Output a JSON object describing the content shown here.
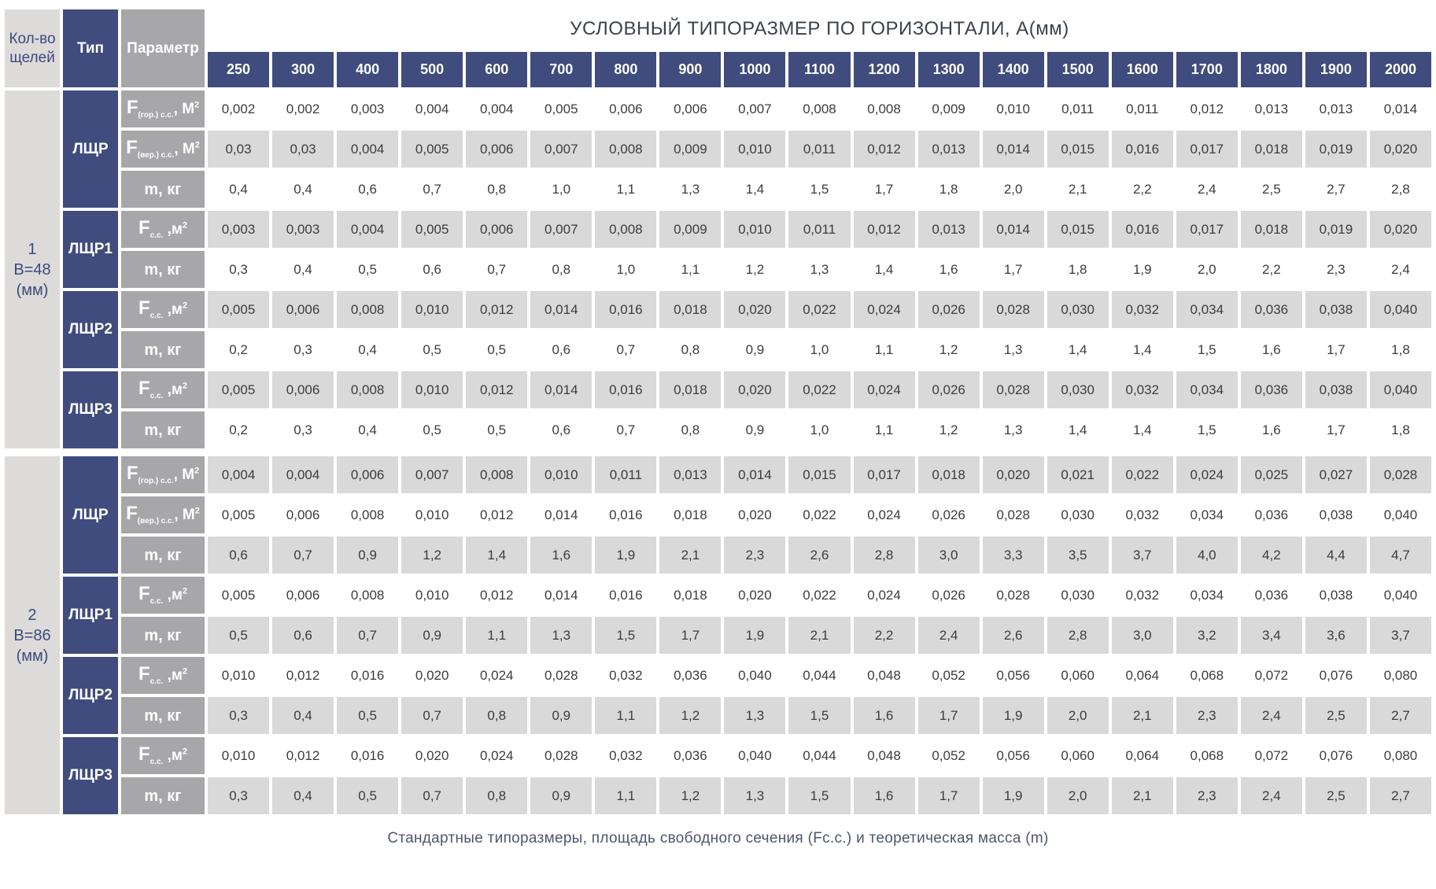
{
  "title": "УСЛОВНЫЙ ТИПОРАЗМЕР ПО ГОРИЗОНТАЛИ, А(мм)",
  "caption": "Стандартные типоразмеры, площадь свободного сечения (Fс.с.) и теоретическая масса (m)",
  "corner_headers": {
    "slots": "Кол-во щелей",
    "type": "Тип",
    "param": "Параметр"
  },
  "colors": {
    "navy": "#3F4C7D",
    "param_gray": "#A7A7A9",
    "stripe_gray": "#D9D9D9",
    "left_gray": "#DCDBD9",
    "white": "#FFFFFF"
  },
  "chart_data": {
    "type": "table",
    "columns": [
      "250",
      "300",
      "400",
      "500",
      "600",
      "700",
      "800",
      "900",
      "1000",
      "1100",
      "1200",
      "1300",
      "1400",
      "1500",
      "1600",
      "1700",
      "1800",
      "1900",
      "2000"
    ],
    "row_groups": [
      {
        "label_lines": "1\nB=48\n(мм)",
        "types": [
          {
            "name": "ЛЩР",
            "rows": [
              {
                "param": {
                  "base": "F",
                  "sub": "(гор.) с.с.",
                  "unit": ", М",
                  "sup": "2"
                },
                "values": [
                  "0,002",
                  "0,002",
                  "0,003",
                  "0,004",
                  "0,004",
                  "0,005",
                  "0,006",
                  "0,006",
                  "0,007",
                  "0,008",
                  "0,008",
                  "0,009",
                  "0,010",
                  "0,011",
                  "0,011",
                  "0,012",
                  "0,013",
                  "0,013",
                  "0,014"
                ]
              },
              {
                "param": {
                  "base": "F",
                  "sub": "(вер.) с.с.",
                  "unit": ", М",
                  "sup": "2"
                },
                "values": [
                  "0,03",
                  "0,03",
                  "0,004",
                  "0,005",
                  "0,006",
                  "0,007",
                  "0,008",
                  "0,009",
                  "0,010",
                  "0,011",
                  "0,012",
                  "0,013",
                  "0,014",
                  "0,015",
                  "0,016",
                  "0,017",
                  "0,018",
                  "0,019",
                  "0,020"
                ]
              },
              {
                "param": {
                  "text": "m, кг"
                },
                "values": [
                  "0,4",
                  "0,4",
                  "0,6",
                  "0,7",
                  "0,8",
                  "1,0",
                  "1,1",
                  "1,3",
                  "1,4",
                  "1,5",
                  "1,7",
                  "1,8",
                  "2,0",
                  "2,1",
                  "2,2",
                  "2,4",
                  "2,5",
                  "2,7",
                  "2,8"
                ]
              }
            ]
          },
          {
            "name": "ЛЩР1",
            "rows": [
              {
                "param": {
                  "base": "F",
                  "sub": "с.с.",
                  "unit": " ,м",
                  "sup": "2"
                },
                "values": [
                  "0,003",
                  "0,003",
                  "0,004",
                  "0,005",
                  "0,006",
                  "0,007",
                  "0,008",
                  "0,009",
                  "0,010",
                  "0,011",
                  "0,012",
                  "0,013",
                  "0,014",
                  "0,015",
                  "0,016",
                  "0,017",
                  "0,018",
                  "0,019",
                  "0,020"
                ]
              },
              {
                "param": {
                  "text": "m, кг"
                },
                "values": [
                  "0,3",
                  "0,4",
                  "0,5",
                  "0,6",
                  "0,7",
                  "0,8",
                  "1,0",
                  "1,1",
                  "1,2",
                  "1,3",
                  "1,4",
                  "1,6",
                  "1,7",
                  "1,8",
                  "1,9",
                  "2,0",
                  "2,2",
                  "2,3",
                  "2,4"
                ]
              }
            ]
          },
          {
            "name": "ЛЩР2",
            "rows": [
              {
                "param": {
                  "base": "F",
                  "sub": "с.с.",
                  "unit": " ,м",
                  "sup": "2"
                },
                "values": [
                  "0,005",
                  "0,006",
                  "0,008",
                  "0,010",
                  "0,012",
                  "0,014",
                  "0,016",
                  "0,018",
                  "0,020",
                  "0,022",
                  "0,024",
                  "0,026",
                  "0,028",
                  "0,030",
                  "0,032",
                  "0,034",
                  "0,036",
                  "0,038",
                  "0,040"
                ]
              },
              {
                "param": {
                  "text": "m, кг"
                },
                "values": [
                  "0,2",
                  "0,3",
                  "0,4",
                  "0,5",
                  "0,5",
                  "0,6",
                  "0,7",
                  "0,8",
                  "0,9",
                  "1,0",
                  "1,1",
                  "1,2",
                  "1,3",
                  "1,4",
                  "1,4",
                  "1,5",
                  "1,6",
                  "1,7",
                  "1,8"
                ]
              }
            ]
          },
          {
            "name": "ЛЩР3",
            "rows": [
              {
                "param": {
                  "base": "F",
                  "sub": "с.с.",
                  "unit": " ,м",
                  "sup": "2"
                },
                "values": [
                  "0,005",
                  "0,006",
                  "0,008",
                  "0,010",
                  "0,012",
                  "0,014",
                  "0,016",
                  "0,018",
                  "0,020",
                  "0,022",
                  "0,024",
                  "0,026",
                  "0,028",
                  "0,030",
                  "0,032",
                  "0,034",
                  "0,036",
                  "0,038",
                  "0,040"
                ]
              },
              {
                "param": {
                  "text": "m, кг"
                },
                "values": [
                  "0,2",
                  "0,3",
                  "0,4",
                  "0,5",
                  "0,5",
                  "0,6",
                  "0,7",
                  "0,8",
                  "0,9",
                  "1,0",
                  "1,1",
                  "1,2",
                  "1,3",
                  "1,4",
                  "1,4",
                  "1,5",
                  "1,6",
                  "1,7",
                  "1,8"
                ]
              }
            ]
          }
        ]
      },
      {
        "label_lines": "2\nB=86\n(мм)",
        "types": [
          {
            "name": "ЛЩР",
            "rows": [
              {
                "param": {
                  "base": "F",
                  "sub": "(гор.) с.с.",
                  "unit": ", М",
                  "sup": "2"
                },
                "values": [
                  "0,004",
                  "0,004",
                  "0,006",
                  "0,007",
                  "0,008",
                  "0,010",
                  "0,011",
                  "0,013",
                  "0,014",
                  "0,015",
                  "0,017",
                  "0,018",
                  "0,020",
                  "0,021",
                  "0,022",
                  "0,024",
                  "0,025",
                  "0,027",
                  "0,028"
                ]
              },
              {
                "param": {
                  "base": "F",
                  "sub": "(вер.) с.с.",
                  "unit": ", М",
                  "sup": "2"
                },
                "values": [
                  "0,005",
                  "0,006",
                  "0,008",
                  "0,010",
                  "0,012",
                  "0,014",
                  "0,016",
                  "0,018",
                  "0,020",
                  "0,022",
                  "0,024",
                  "0,026",
                  "0,028",
                  "0,030",
                  "0,032",
                  "0,034",
                  "0,036",
                  "0,038",
                  "0,040"
                ]
              },
              {
                "param": {
                  "text": "m, кг"
                },
                "values": [
                  "0,6",
                  "0,7",
                  "0,9",
                  "1,2",
                  "1,4",
                  "1,6",
                  "1,9",
                  "2,1",
                  "2,3",
                  "2,6",
                  "2,8",
                  "3,0",
                  "3,3",
                  "3,5",
                  "3,7",
                  "4,0",
                  "4,2",
                  "4,4",
                  "4,7"
                ]
              }
            ]
          },
          {
            "name": "ЛЩР1",
            "rows": [
              {
                "param": {
                  "base": "F",
                  "sub": "с.с.",
                  "unit": " ,м",
                  "sup": "2"
                },
                "values": [
                  "0,005",
                  "0,006",
                  "0,008",
                  "0,010",
                  "0,012",
                  "0,014",
                  "0,016",
                  "0,018",
                  "0,020",
                  "0,022",
                  "0,024",
                  "0,026",
                  "0,028",
                  "0,030",
                  "0,032",
                  "0,034",
                  "0,036",
                  "0,038",
                  "0,040"
                ]
              },
              {
                "param": {
                  "text": "m, кг"
                },
                "values": [
                  "0,5",
                  "0,6",
                  "0,7",
                  "0,9",
                  "1,1",
                  "1,3",
                  "1,5",
                  "1,7",
                  "1,9",
                  "2,1",
                  "2,2",
                  "2,4",
                  "2,6",
                  "2,8",
                  "3,0",
                  "3,2",
                  "3,4",
                  "3,6",
                  "3,7"
                ]
              }
            ]
          },
          {
            "name": "ЛЩР2",
            "rows": [
              {
                "param": {
                  "base": "F",
                  "sub": "с.с.",
                  "unit": " ,м",
                  "sup": "2"
                },
                "values": [
                  "0,010",
                  "0,012",
                  "0,016",
                  "0,020",
                  "0,024",
                  "0,028",
                  "0,032",
                  "0,036",
                  "0,040",
                  "0,044",
                  "0,048",
                  "0,052",
                  "0,056",
                  "0,060",
                  "0,064",
                  "0,068",
                  "0,072",
                  "0,076",
                  "0,080"
                ]
              },
              {
                "param": {
                  "text": "m, кг"
                },
                "values": [
                  "0,3",
                  "0,4",
                  "0,5",
                  "0,7",
                  "0,8",
                  "0,9",
                  "1,1",
                  "1,2",
                  "1,3",
                  "1,5",
                  "1,6",
                  "1,7",
                  "1,9",
                  "2,0",
                  "2,1",
                  "2,3",
                  "2,4",
                  "2,5",
                  "2,7"
                ]
              }
            ]
          },
          {
            "name": "ЛЩР3",
            "rows": [
              {
                "param": {
                  "base": "F",
                  "sub": "с.с.",
                  "unit": " ,м",
                  "sup": "2"
                },
                "values": [
                  "0,010",
                  "0,012",
                  "0,016",
                  "0,020",
                  "0,024",
                  "0,028",
                  "0,032",
                  "0,036",
                  "0,040",
                  "0,044",
                  "0,048",
                  "0,052",
                  "0,056",
                  "0,060",
                  "0,064",
                  "0,068",
                  "0,072",
                  "0,076",
                  "0,080"
                ]
              },
              {
                "param": {
                  "text": "m, кг"
                },
                "values": [
                  "0,3",
                  "0,4",
                  "0,5",
                  "0,7",
                  "0,8",
                  "0,9",
                  "1,1",
                  "1,2",
                  "1,3",
                  "1,5",
                  "1,6",
                  "1,7",
                  "1,9",
                  "2,0",
                  "2,1",
                  "2,3",
                  "2,4",
                  "2,5",
                  "2,7"
                ]
              }
            ]
          }
        ]
      }
    ]
  }
}
